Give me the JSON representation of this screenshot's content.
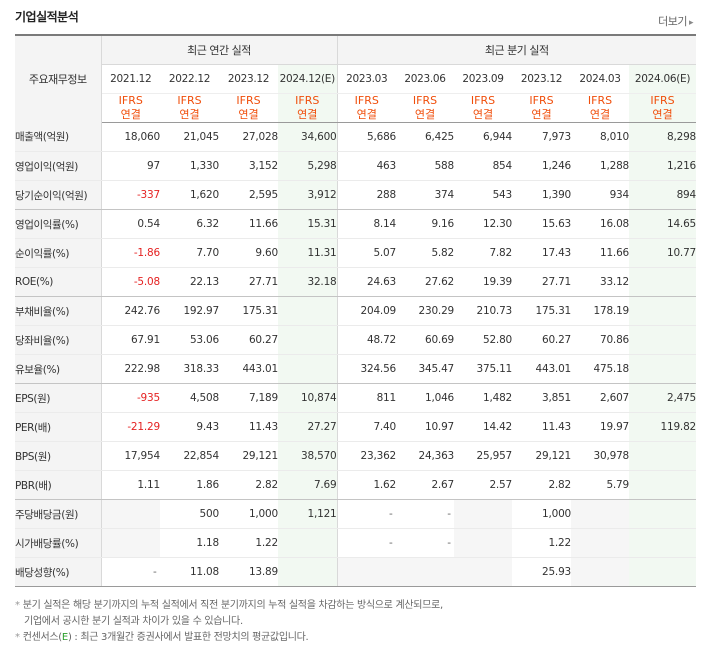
{
  "title": "기업실적분석",
  "more_label": "더보기",
  "corner_label": "주요재무정보",
  "groups": {
    "annual": "최근 연간 실적",
    "quarterly": "최근 분기 실적"
  },
  "periods": [
    "2021.12",
    "2022.12",
    "2023.12",
    "2024.12(E)",
    "2023.03",
    "2023.06",
    "2023.09",
    "2023.12",
    "2024.03",
    "2024.06(E)"
  ],
  "ifrs": [
    "IFRS",
    "연결"
  ],
  "rows": [
    {
      "label": "매출액(억원)",
      "values": [
        "18,060",
        "21,045",
        "27,028",
        "34,600",
        "5,686",
        "6,425",
        "6,944",
        "7,973",
        "8,010",
        "8,298"
      ]
    },
    {
      "label": "영업이익(억원)",
      "values": [
        "97",
        "1,330",
        "3,152",
        "5,298",
        "463",
        "588",
        "854",
        "1,246",
        "1,288",
        "1,216"
      ]
    },
    {
      "label": "당기순이익(억원)",
      "values": [
        "-337",
        "1,620",
        "2,595",
        "3,912",
        "288",
        "374",
        "543",
        "1,390",
        "934",
        "894"
      ]
    },
    {
      "label": "영업이익률(%)",
      "values": [
        "0.54",
        "6.32",
        "11.66",
        "15.31",
        "8.14",
        "9.16",
        "12.30",
        "15.63",
        "16.08",
        "14.65"
      ]
    },
    {
      "label": "순이익률(%)",
      "values": [
        "-1.86",
        "7.70",
        "9.60",
        "11.31",
        "5.07",
        "5.82",
        "7.82",
        "17.43",
        "11.66",
        "10.77"
      ]
    },
    {
      "label": "ROE(%)",
      "values": [
        "-5.08",
        "22.13",
        "27.71",
        "32.18",
        "24.63",
        "27.62",
        "19.39",
        "27.71",
        "33.12",
        ""
      ]
    },
    {
      "label": "부채비율(%)",
      "values": [
        "242.76",
        "192.97",
        "175.31",
        "",
        "204.09",
        "230.29",
        "210.73",
        "175.31",
        "178.19",
        ""
      ]
    },
    {
      "label": "당좌비율(%)",
      "values": [
        "67.91",
        "53.06",
        "60.27",
        "",
        "48.72",
        "60.69",
        "52.80",
        "60.27",
        "70.86",
        ""
      ]
    },
    {
      "label": "유보율(%)",
      "values": [
        "222.98",
        "318.33",
        "443.01",
        "",
        "324.56",
        "345.47",
        "375.11",
        "443.01",
        "475.18",
        ""
      ]
    },
    {
      "label": "EPS(원)",
      "values": [
        "-935",
        "4,508",
        "7,189",
        "10,874",
        "811",
        "1,046",
        "1,482",
        "3,851",
        "2,607",
        "2,475"
      ]
    },
    {
      "label": "PER(배)",
      "values": [
        "-21.29",
        "9.43",
        "11.43",
        "27.27",
        "7.40",
        "10.97",
        "14.42",
        "11.43",
        "19.97",
        "119.82"
      ]
    },
    {
      "label": "BPS(원)",
      "values": [
        "17,954",
        "22,854",
        "29,121",
        "38,570",
        "23,362",
        "24,363",
        "25,957",
        "29,121",
        "30,978",
        ""
      ]
    },
    {
      "label": "PBR(배)",
      "values": [
        "1.11",
        "1.86",
        "2.82",
        "7.69",
        "1.62",
        "2.67",
        "2.57",
        "2.82",
        "5.79",
        ""
      ]
    },
    {
      "label": "주당배당금(원)",
      "values": [
        "",
        "500",
        "1,000",
        "1,121",
        "-",
        "-",
        "",
        "1,000",
        "",
        ""
      ]
    },
    {
      "label": "시가배당률(%)",
      "values": [
        "",
        "1.18",
        "1.22",
        "",
        "-",
        "-",
        "",
        "1.22",
        "",
        ""
      ]
    },
    {
      "label": "배당성향(%)",
      "values": [
        "-",
        "11.08",
        "13.89",
        "",
        "",
        "",
        "",
        "25.93",
        "",
        ""
      ]
    }
  ],
  "notes": {
    "note1_line1": "분기 실적은 해당 분기까지의 누적 실적에서 직전 분기까지의 누적 실적을 차감하는 방식으로 계산되므로,",
    "note1_line2": "기업에서 공시한 분기 실적과 차이가 있을 수 있습니다.",
    "note2_prefix": "컨센서스(",
    "note2_e": "E",
    "note2_suffix": ") : 최근 3개월간 증권사에서 발표한 전망치의 평균값입니다."
  }
}
